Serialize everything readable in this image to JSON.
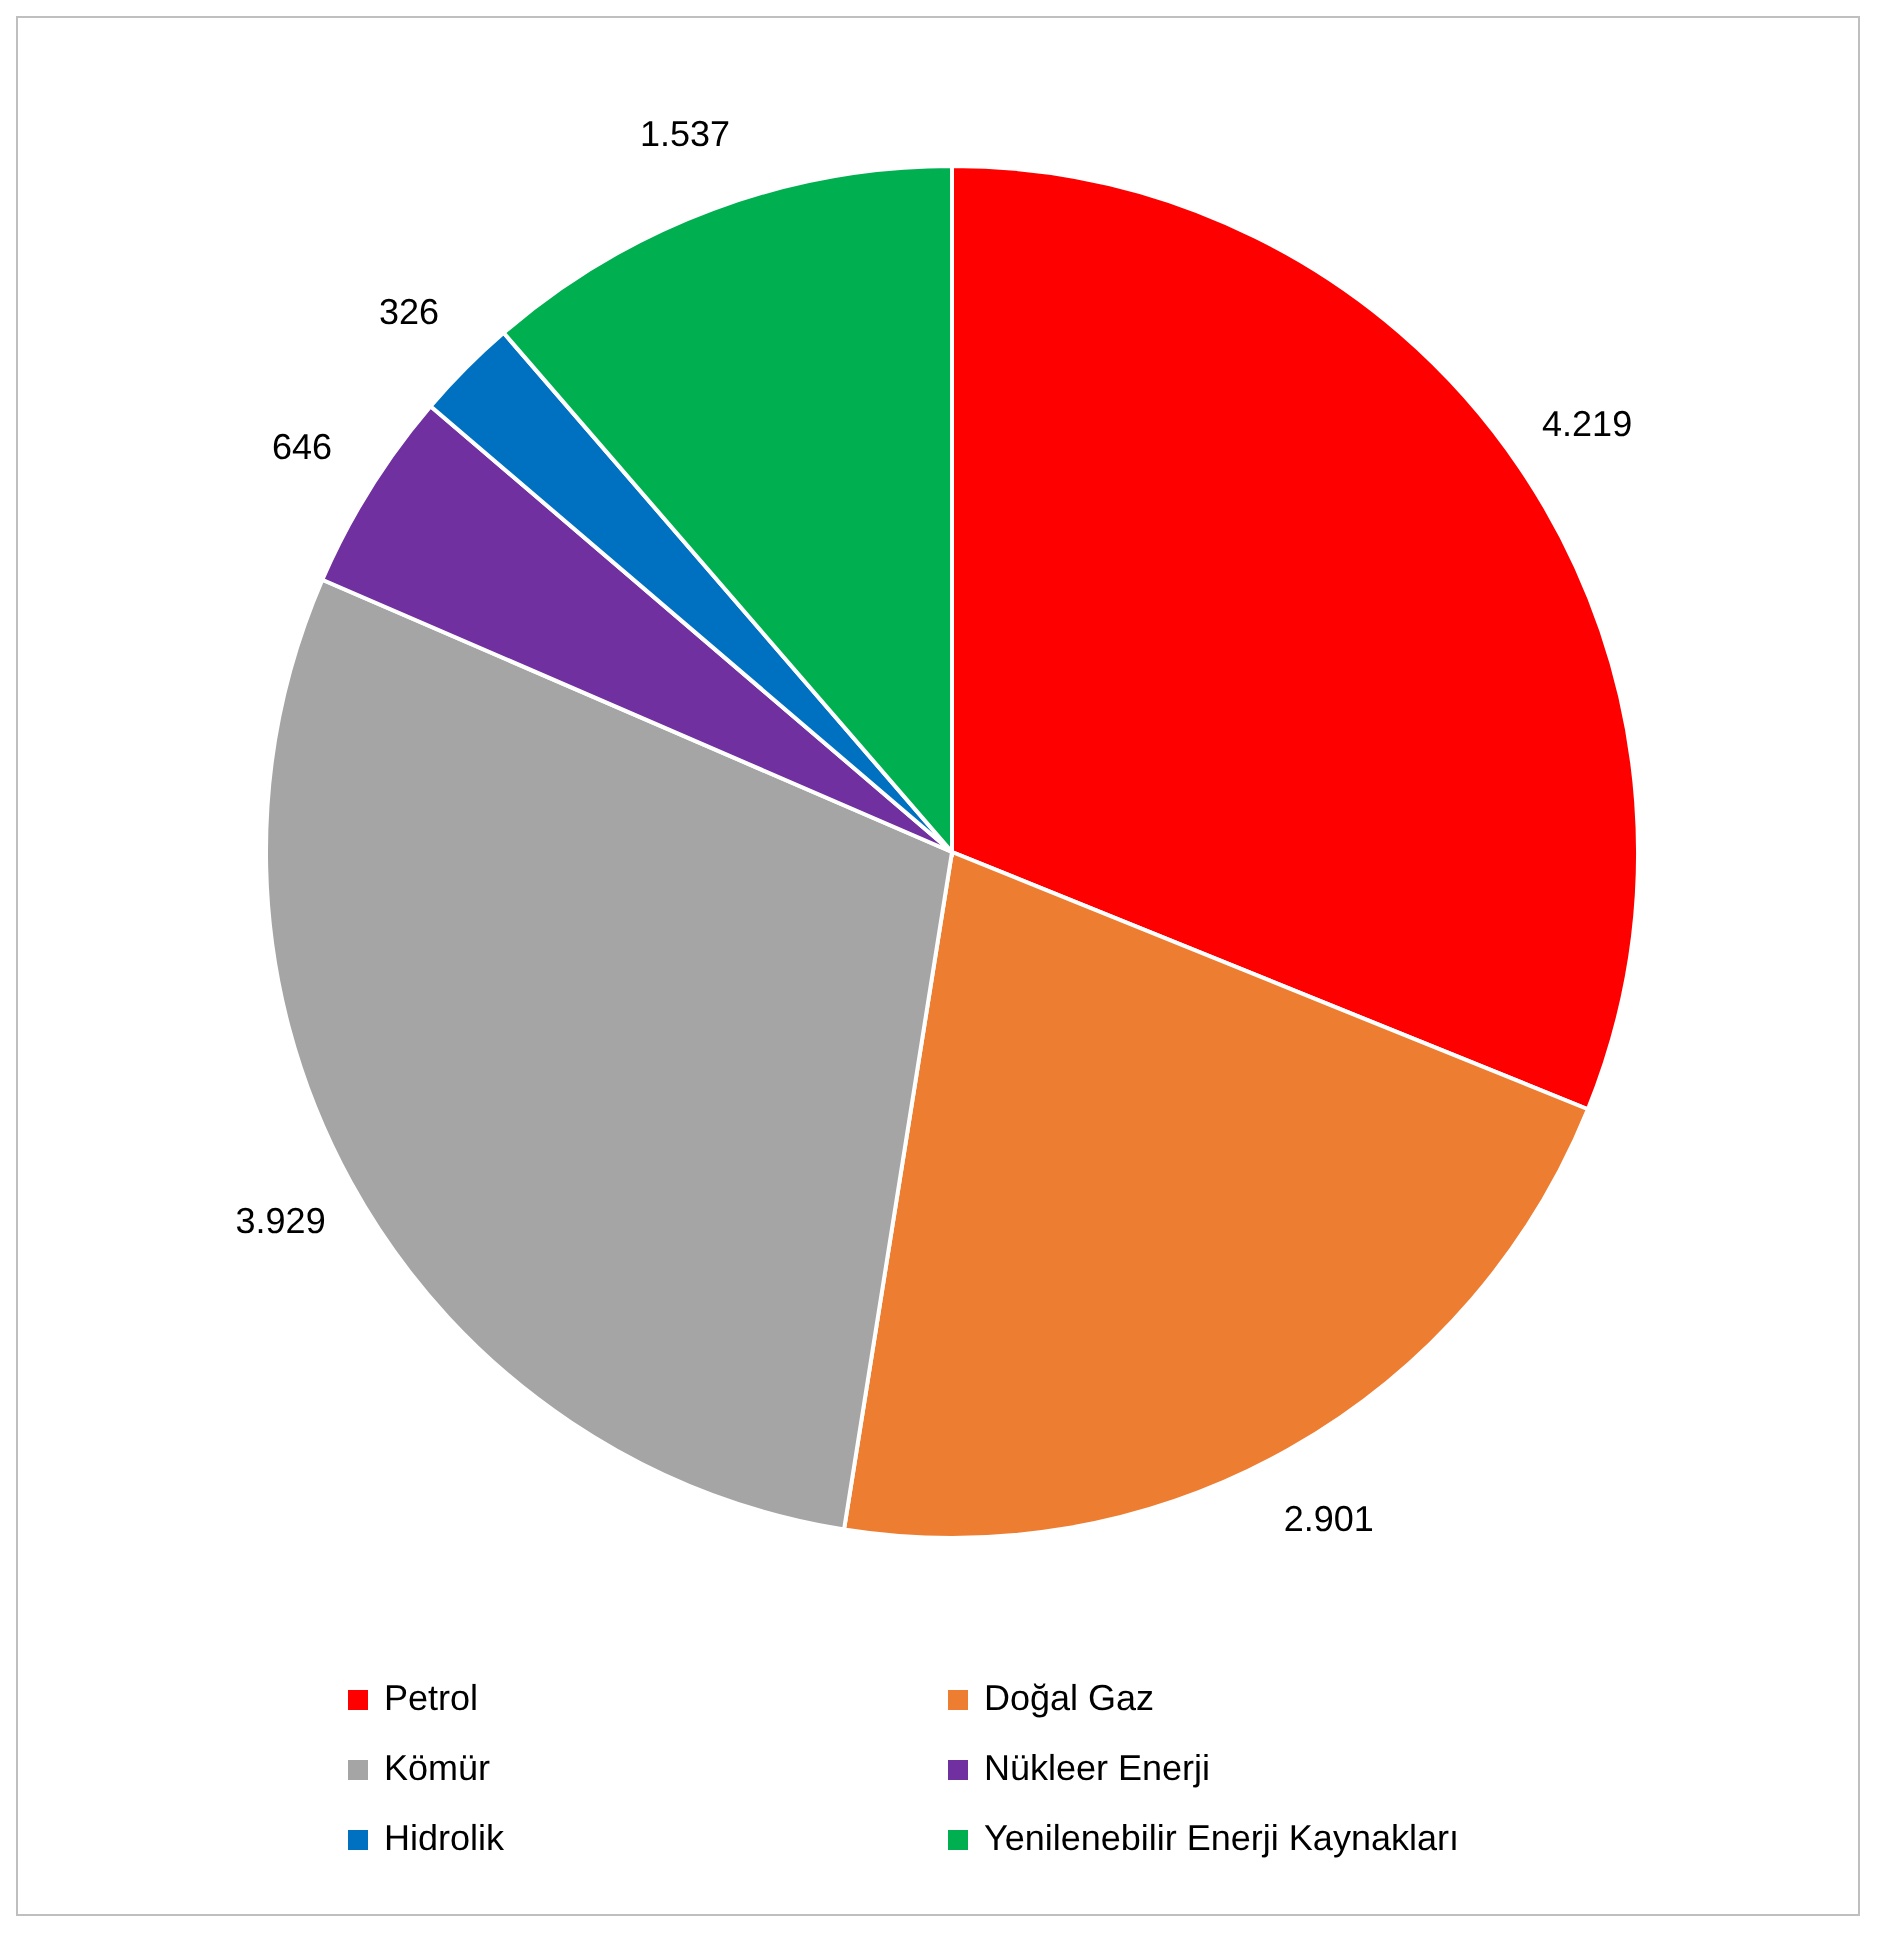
{
  "chart_data": {
    "type": "pie",
    "categories": [
      "Petrol",
      "Doğal Gaz",
      "Kömür",
      "Nükleer Enerji",
      "Hidrolik",
      "Yenilenebilir Enerji Kaynakları"
    ],
    "values": [
      4219,
      2901,
      3929,
      646,
      326,
      1537
    ],
    "value_labels": [
      "4.219",
      "2.901",
      "3.929",
      "646",
      "326",
      "1.537"
    ],
    "colors": [
      "#ff0000",
      "#ed7d31",
      "#a5a5a5",
      "#7030a0",
      "#0070c0",
      "#00b050"
    ],
    "legend": "bottom"
  }
}
